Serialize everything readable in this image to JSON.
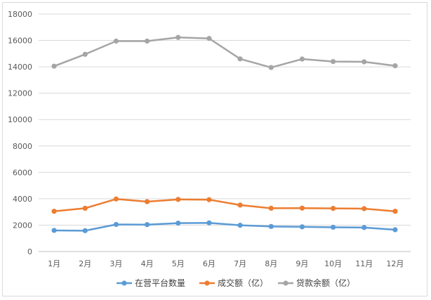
{
  "chart_data": {
    "type": "line",
    "title": "",
    "xlabel": "",
    "ylabel": "",
    "categories": [
      "1月",
      "2月",
      "3月",
      "4月",
      "5月",
      "6月",
      "7月",
      "8月",
      "9月",
      "10月",
      "11月",
      "12月"
    ],
    "ylim": [
      0,
      18000
    ],
    "yticks": [
      "0",
      "2000",
      "4000",
      "6000",
      "8000",
      "10000",
      "12000",
      "14000",
      "16000",
      "18000"
    ],
    "grid": true,
    "legend_position": "bottom",
    "series": [
      {
        "name": "在营平台数量",
        "color": "#5b9bd5",
        "values": [
          1600,
          1580,
          2050,
          2040,
          2150,
          2170,
          1990,
          1900,
          1870,
          1840,
          1820,
          1650
        ]
      },
      {
        "name": "成交额（亿）",
        "color": "#ed7d31",
        "values": [
          3050,
          3280,
          3980,
          3780,
          3950,
          3930,
          3520,
          3280,
          3290,
          3270,
          3250,
          3050
        ]
      },
      {
        "name": "贷款余额（亿）",
        "color": "#a5a5a5",
        "values": [
          14050,
          14950,
          15950,
          15950,
          16230,
          16150,
          14600,
          13950,
          14590,
          14400,
          14380,
          14080
        ]
      }
    ]
  }
}
